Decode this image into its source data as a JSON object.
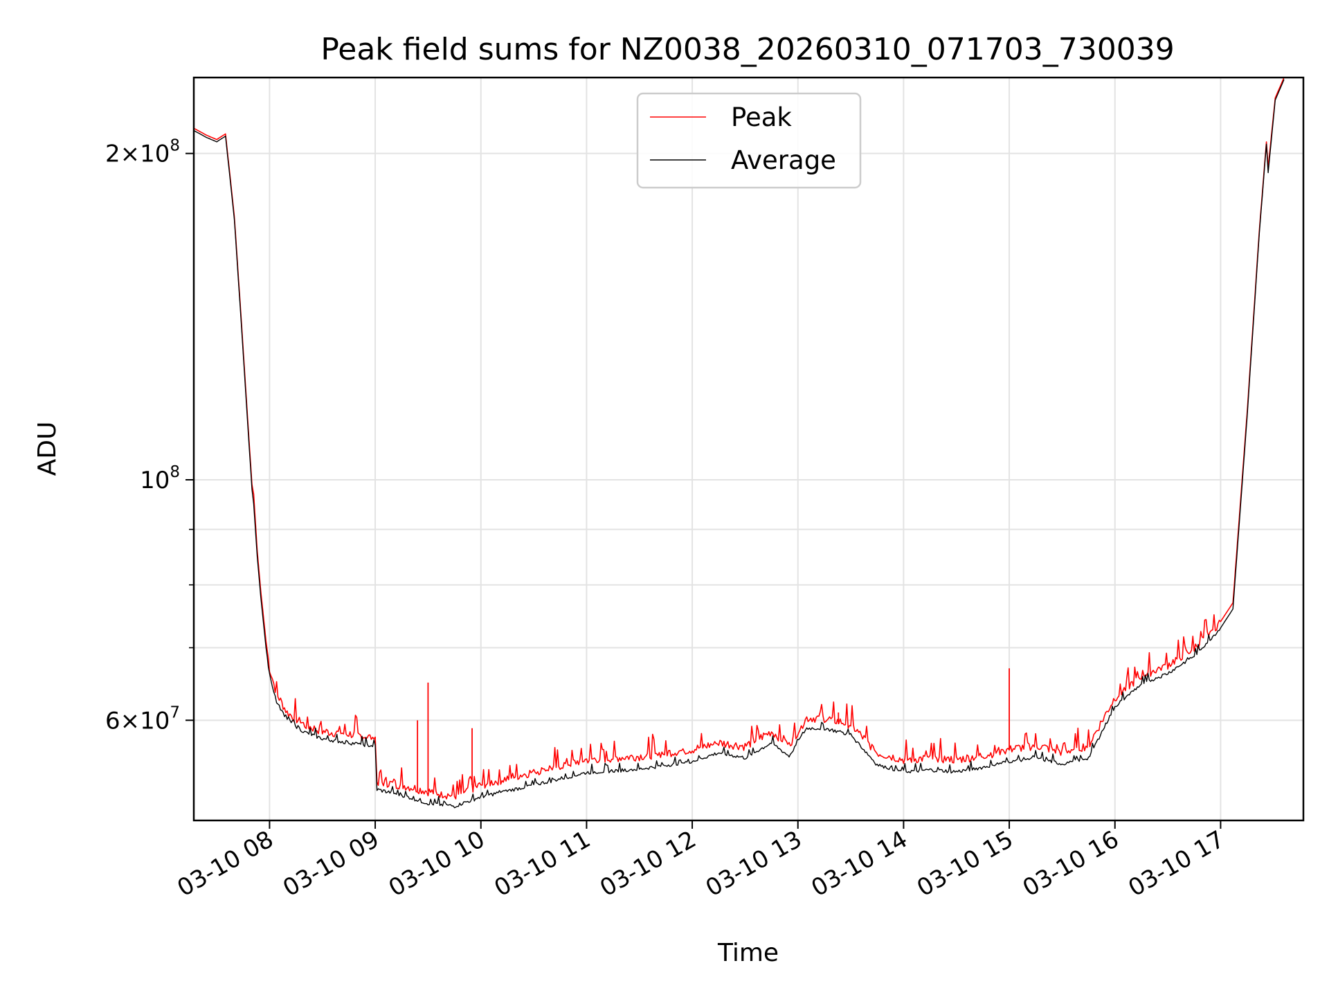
{
  "chart_data": {
    "type": "line",
    "title": "Peak field sums for NZ0038_20260310_071703_730039",
    "xlabel": "Time",
    "ylabel": "ADU",
    "yscale": "log",
    "xlim": [
      "2026-03-10 07:17",
      "2026-03-10 17:47"
    ],
    "ylim": [
      48500000,
      235000000
    ],
    "grid": true,
    "legend_position": "top-center",
    "x_ticks": [
      {
        "time": "2026-03-10 08:00",
        "label": "03-10 08"
      },
      {
        "time": "2026-03-10 09:00",
        "label": "03-10 09"
      },
      {
        "time": "2026-03-10 10:00",
        "label": "03-10 10"
      },
      {
        "time": "2026-03-10 11:00",
        "label": "03-10 11"
      },
      {
        "time": "2026-03-10 12:00",
        "label": "03-10 12"
      },
      {
        "time": "2026-03-10 13:00",
        "label": "03-10 13"
      },
      {
        "time": "2026-03-10 14:00",
        "label": "03-10 14"
      },
      {
        "time": "2026-03-10 15:00",
        "label": "03-10 15"
      },
      {
        "time": "2026-03-10 16:00",
        "label": "03-10 16"
      },
      {
        "time": "2026-03-10 17:00",
        "label": "03-10 17"
      }
    ],
    "y_major_ticks": [
      {
        "value": 60000000,
        "mantissa": "6",
        "base": "10",
        "exponent": "7"
      },
      {
        "value": 100000000,
        "mantissa": "",
        "base": "10",
        "exponent": "8"
      },
      {
        "value": 200000000,
        "mantissa": "2",
        "base": "10",
        "exponent": "8"
      }
    ],
    "y_minor_ticks": [
      70000000,
      80000000,
      90000000
    ],
    "series": [
      {
        "name": "Peak",
        "color": "#ff0000",
        "points": [
          [
            "2026-03-10 07:17",
            211000000
          ],
          [
            "2026-03-10 07:24",
            208000000
          ],
          [
            "2026-03-10 07:30",
            206000000
          ],
          [
            "2026-03-10 07:34",
            208000000
          ],
          [
            "2026-03-10 07:35",
            208500000
          ],
          [
            "2026-03-10 07:40",
            175000000
          ],
          [
            "2026-03-10 07:44",
            140000000
          ],
          [
            "2026-03-10 07:50",
            99000000
          ],
          [
            "2026-03-10 07:51",
            97000000
          ],
          [
            "2026-03-10 07:53",
            86000000
          ],
          [
            "2026-03-10 07:55",
            79000000
          ],
          [
            "2026-03-10 07:58",
            71000000
          ],
          [
            "2026-03-10 08:00",
            67000000
          ],
          [
            "2026-03-10 08:04",
            63500000
          ],
          [
            "2026-03-10 08:10",
            61000000
          ],
          [
            "2026-03-10 08:20",
            59400000
          ],
          [
            "2026-03-10 08:30",
            58600000
          ],
          [
            "2026-03-10 08:45",
            58300000
          ],
          [
            "2026-03-10 09:00",
            57800000
          ],
          [
            "2026-03-10 09:01",
            52700000
          ],
          [
            "2026-03-10 09:15",
            52300000
          ],
          [
            "2026-03-10 09:30",
            51600000
          ],
          [
            "2026-03-10 09:45",
            51100000
          ],
          [
            "2026-03-10 10:00",
            52300000
          ],
          [
            "2026-03-10 10:30",
            53800000
          ],
          [
            "2026-03-10 11:00",
            55200000
          ],
          [
            "2026-03-10 11:30",
            55600000
          ],
          [
            "2026-03-10 12:00",
            56400000
          ],
          [
            "2026-03-10 12:15",
            57200000
          ],
          [
            "2026-03-10 12:30",
            56800000
          ],
          [
            "2026-03-10 12:45",
            58600000
          ],
          [
            "2026-03-10 12:55",
            57000000
          ],
          [
            "2026-03-10 13:05",
            60300000
          ],
          [
            "2026-03-10 13:15",
            60300000
          ],
          [
            "2026-03-10 13:30",
            59500000
          ],
          [
            "2026-03-10 13:45",
            56000000
          ],
          [
            "2026-03-10 14:00",
            55200000
          ],
          [
            "2026-03-10 14:15",
            55400000
          ],
          [
            "2026-03-10 14:30",
            55200000
          ],
          [
            "2026-03-10 14:45",
            55700000
          ],
          [
            "2026-03-10 15:00",
            56400000
          ],
          [
            "2026-03-10 15:15",
            56900000
          ],
          [
            "2026-03-10 15:30",
            56100000
          ],
          [
            "2026-03-10 15:45",
            56900000
          ],
          [
            "2026-03-10 16:00",
            63000000
          ],
          [
            "2026-03-10 16:15",
            66000000
          ],
          [
            "2026-03-10 16:30",
            67500000
          ],
          [
            "2026-03-10 16:45",
            70000000
          ],
          [
            "2026-03-10 17:00",
            74000000
          ],
          [
            "2026-03-10 17:07",
            77000000
          ],
          [
            "2026-03-10 17:15",
            115000000
          ],
          [
            "2026-03-10 17:22",
            170000000
          ],
          [
            "2026-03-10 17:26",
            205000000
          ],
          [
            "2026-03-10 17:27",
            194000000
          ],
          [
            "2026-03-10 17:31",
            225000000
          ],
          [
            "2026-03-10 17:36",
            235000000
          ]
        ],
        "spikes": [
          {
            "time": "2026-03-10 09:24",
            "value": 60000000
          },
          {
            "time": "2026-03-10 09:30",
            "value": 65000000
          },
          {
            "time": "2026-03-10 09:55",
            "value": 59000000
          },
          {
            "time": "2026-03-10 13:23",
            "value": 61000000
          },
          {
            "time": "2026-03-10 15:00",
            "value": 67000000
          }
        ]
      },
      {
        "name": "Average",
        "color": "#000000",
        "points": [
          [
            "2026-03-10 07:17",
            210000000
          ],
          [
            "2026-03-10 07:24",
            207000000
          ],
          [
            "2026-03-10 07:30",
            205000000
          ],
          [
            "2026-03-10 07:34",
            207000000
          ],
          [
            "2026-03-10 07:35",
            207500000
          ],
          [
            "2026-03-10 07:40",
            174000000
          ],
          [
            "2026-03-10 07:44",
            139000000
          ],
          [
            "2026-03-10 07:50",
            98000000
          ],
          [
            "2026-03-10 07:51",
            95000000
          ],
          [
            "2026-03-10 07:53",
            85000000
          ],
          [
            "2026-03-10 07:55",
            78000000
          ],
          [
            "2026-03-10 07:58",
            70000000
          ],
          [
            "2026-03-10 08:00",
            66000000
          ],
          [
            "2026-03-10 08:04",
            62500000
          ],
          [
            "2026-03-10 08:10",
            60000000
          ],
          [
            "2026-03-10 08:20",
            58500000
          ],
          [
            "2026-03-10 08:30",
            57700000
          ],
          [
            "2026-03-10 08:45",
            57200000
          ],
          [
            "2026-03-10 09:00",
            56800000
          ],
          [
            "2026-03-10 09:01",
            51800000
          ],
          [
            "2026-03-10 09:15",
            51200000
          ],
          [
            "2026-03-10 09:30",
            50300000
          ],
          [
            "2026-03-10 09:45",
            50000000
          ],
          [
            "2026-03-10 10:00",
            51000000
          ],
          [
            "2026-03-10 10:30",
            52300000
          ],
          [
            "2026-03-10 11:00",
            53700000
          ],
          [
            "2026-03-10 11:30",
            54100000
          ],
          [
            "2026-03-10 12:00",
            55000000
          ],
          [
            "2026-03-10 12:15",
            56000000
          ],
          [
            "2026-03-10 12:30",
            55400000
          ],
          [
            "2026-03-10 12:45",
            57200000
          ],
          [
            "2026-03-10 12:55",
            55600000
          ],
          [
            "2026-03-10 13:05",
            59000000
          ],
          [
            "2026-03-10 13:15",
            59000000
          ],
          [
            "2026-03-10 13:30",
            58200000
          ],
          [
            "2026-03-10 13:45",
            54600000
          ],
          [
            "2026-03-10 14:00",
            53800000
          ],
          [
            "2026-03-10 14:15",
            54000000
          ],
          [
            "2026-03-10 14:30",
            53800000
          ],
          [
            "2026-03-10 14:45",
            54300000
          ],
          [
            "2026-03-10 15:00",
            55000000
          ],
          [
            "2026-03-10 15:15",
            55400000
          ],
          [
            "2026-03-10 15:30",
            54700000
          ],
          [
            "2026-03-10 15:45",
            55400000
          ],
          [
            "2026-03-10 16:00",
            61800000
          ],
          [
            "2026-03-10 16:15",
            64800000
          ],
          [
            "2026-03-10 16:30",
            66300000
          ],
          [
            "2026-03-10 16:45",
            68800000
          ],
          [
            "2026-03-10 17:00",
            73000000
          ],
          [
            "2026-03-10 17:07",
            76000000
          ],
          [
            "2026-03-10 17:15",
            114000000
          ],
          [
            "2026-03-10 17:22",
            169000000
          ],
          [
            "2026-03-10 17:26",
            204000000
          ],
          [
            "2026-03-10 17:27",
            192000000
          ],
          [
            "2026-03-10 17:31",
            224000000
          ],
          [
            "2026-03-10 17:36",
            234000000
          ]
        ]
      }
    ]
  }
}
